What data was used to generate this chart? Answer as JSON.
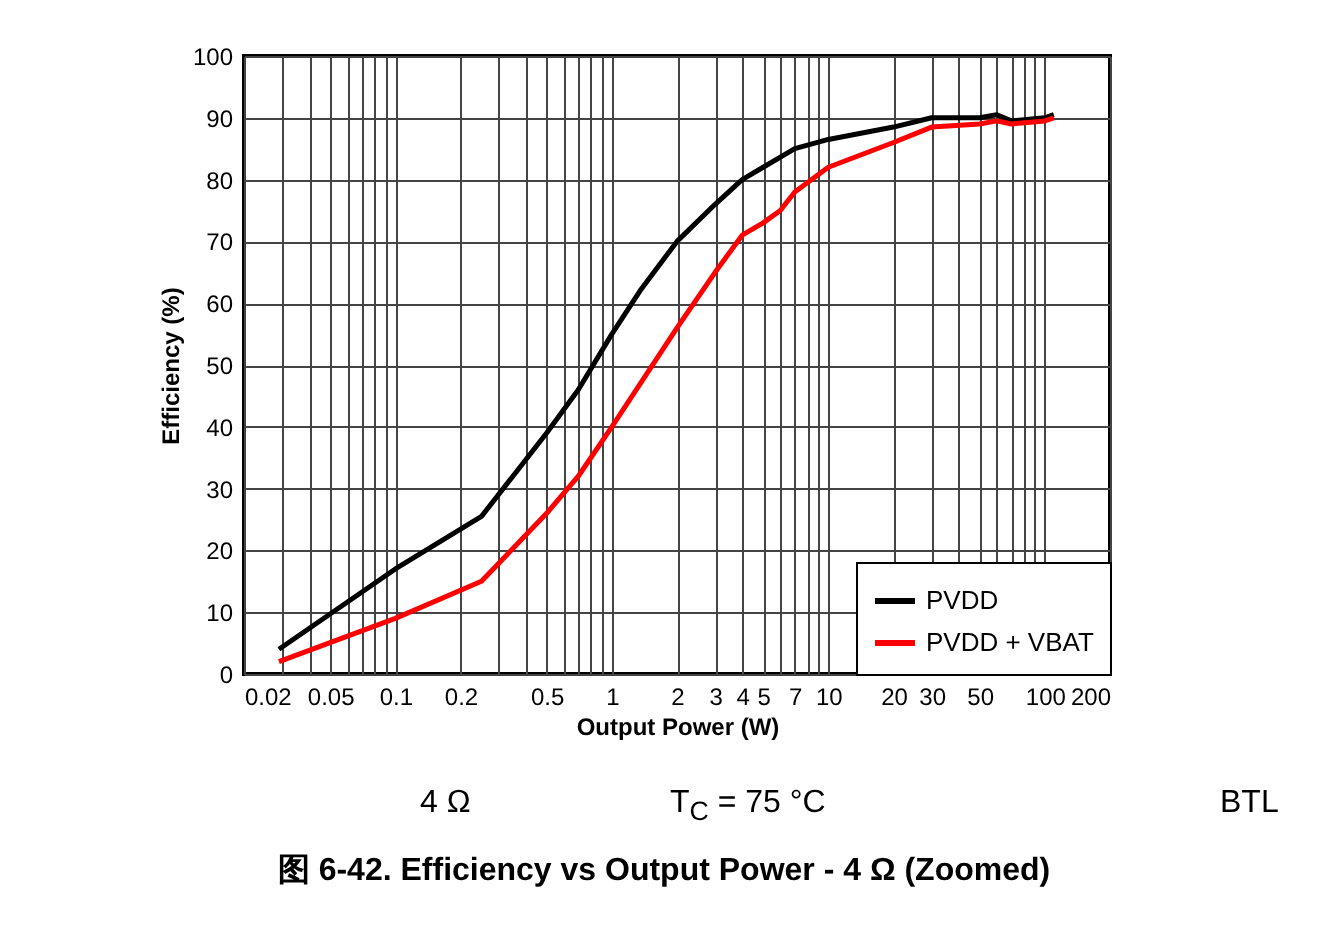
{
  "chart_data": {
    "type": "line",
    "title": "图 6-42. Efficiency vs Output Power - 4 Ω (Zoomed)",
    "xlabel": "Output Power (W)",
    "ylabel": "Efficiency (%)",
    "annotations": [
      "4 Ω",
      "T$_{C}$ = 75 °C",
      "BTL"
    ],
    "log": "x",
    "grid": true,
    "legend": "bottom right",
    "line_style": "solid",
    "marker": "none",
    "xlim": [
      0.02,
      200
    ],
    "ylim": [
      0,
      100
    ],
    "xticks": [
      0.02,
      {
        "value": 0.03,
        "label": null
      },
      {
        "value": 0.04,
        "label": null
      },
      0.05,
      {
        "value": 0.06,
        "label": null
      },
      {
        "value": 0.07,
        "label": null
      },
      {
        "value": 0.08,
        "label": null
      },
      {
        "value": 0.09,
        "label": null
      },
      0.1,
      0.2,
      {
        "value": 0.3,
        "label": null
      },
      {
        "value": 0.4,
        "label": null
      },
      0.5,
      {
        "value": 0.6,
        "label": null
      },
      {
        "value": 0.7,
        "label": null
      },
      {
        "value": 0.8,
        "label": null
      },
      {
        "value": 0.9,
        "label": null
      },
      1,
      2,
      3,
      4,
      5,
      {
        "value": 6,
        "label": null
      },
      7,
      {
        "value": 8,
        "label": null
      },
      {
        "value": 9,
        "label": null
      },
      10,
      20,
      30,
      {
        "value": 40,
        "label": null
      },
      50,
      {
        "value": 60,
        "label": null
      },
      {
        "value": 70,
        "label": null
      },
      {
        "value": 80,
        "label": null
      },
      {
        "value": 90,
        "label": null
      },
      100,
      200
    ],
    "yticks": [
      0,
      10,
      20,
      30,
      40,
      50,
      60,
      70,
      80,
      90,
      100
    ],
    "series": [
      {
        "name": "PVDD",
        "color": "#000000",
        "x": [
          0.029,
          0.1,
          0.25,
          0.5,
          0.7,
          1,
          1.35,
          2,
          3,
          4,
          5,
          7,
          10,
          20,
          30,
          50,
          60,
          70,
          100,
          110
        ],
        "values": [
          4,
          17,
          25.5,
          39,
          46,
          55,
          62,
          70,
          76,
          80,
          82,
          85,
          86.5,
          88.5,
          90,
          90,
          90.5,
          89.5,
          90,
          90.5
        ]
      },
      {
        "name": "PVDD + VBAT",
        "color": "#ff0000",
        "x": [
          0.029,
          0.1,
          0.25,
          0.5,
          0.7,
          1,
          2,
          3,
          4,
          5,
          6,
          7,
          10,
          20,
          30,
          50,
          60,
          70,
          100,
          110
        ],
        "values": [
          2,
          9,
          15,
          26,
          32,
          40,
          56,
          65,
          71,
          73,
          75,
          78,
          82,
          86,
          88.5,
          89,
          89.5,
          89,
          89.5,
          90
        ]
      }
    ]
  }
}
